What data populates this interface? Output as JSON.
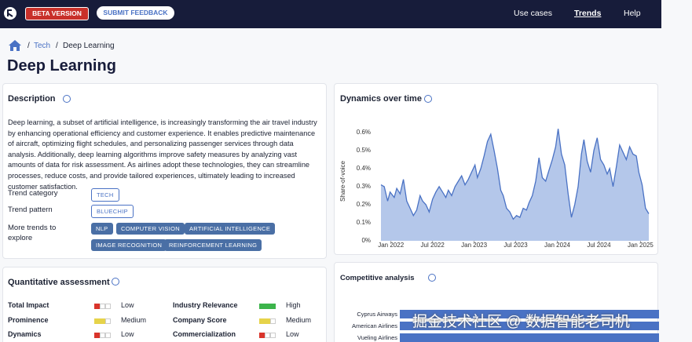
{
  "navbar": {
    "beta": "BETA VERSION",
    "feedback": "SUBMIT FEEDBACK",
    "links": [
      "Use cases",
      "Trends",
      "Help"
    ]
  },
  "breadcrumb": [
    "Tech",
    "Deep Learning"
  ],
  "title": "Deep Learning",
  "description": {
    "heading": "Description",
    "text": "Deep learning, a subset of artificial intelligence, is increasingly transforming the air travel industry by enhancing operational efficiency and customer experience. It enables predictive maintenance of aircraft, optimizing flight schedules, and personalizing passenger services through data analysis. Additionally, deep learning algorithms improve safety measures by analyzing vast amounts of data for risk assessment. As airlines adopt these technologies, they can streamline processes, reduce costs, and provide tailored experiences, ultimately leading to increased customer satisfaction.",
    "category_label": "Trend category",
    "category": "TECH",
    "pattern_label": "Trend pattern",
    "pattern": "BLUECHIP",
    "more_label": "More trends to explore",
    "more": [
      "NLP",
      "COMPUTER VISION",
      "ARTIFICIAL INTELLIGENCE",
      "IMAGE RECOGNITION",
      "REINFORCEMENT LEARNING"
    ]
  },
  "quantitative": {
    "heading": "Quantitative assessment",
    "rows": [
      {
        "label": "Total Impact",
        "rating": "Low",
        "filled": 1,
        "color": "#d9342b"
      },
      {
        "label": "Prominence",
        "rating": "Medium",
        "filled": 2,
        "color": "#e6d34a"
      },
      {
        "label": "Dynamics",
        "rating": "Low",
        "filled": 1,
        "color": "#d9342b"
      },
      {
        "label": "Industry Relevance",
        "rating": "High",
        "filled": 3,
        "color": "#3cb44b"
      },
      {
        "label": "Company Score",
        "rating": "Medium",
        "filled": 2,
        "color": "#e6d34a"
      },
      {
        "label": "Commercialization",
        "rating": "Low",
        "filled": 1,
        "color": "#d9342b"
      }
    ]
  },
  "chart_data": {
    "type": "area",
    "title": "Dynamics over time",
    "y_label": "Share-of-voice",
    "color": "#4a72c4",
    "fill": "#b4c7ea",
    "grid": false,
    "xlim": [
      2021.88,
      2025.1
    ],
    "ylim": [
      0,
      0.66
    ],
    "xticks": [
      {
        "value": 2022,
        "label": "Jan 2022"
      },
      {
        "value": 2022.5,
        "label": "Jul 2022"
      },
      {
        "value": 2023,
        "label": "Jan 2023"
      },
      {
        "value": 2023.5,
        "label": "Jul 2023"
      },
      {
        "value": 2024,
        "label": "Jan 2024"
      },
      {
        "value": 2024.5,
        "label": "Jul 2024"
      },
      {
        "value": 2025,
        "label": "Jan 2025"
      }
    ],
    "yticks": [
      {
        "value": 0,
        "label": "0%"
      },
      {
        "value": 0.1,
        "label": "0.1%"
      },
      {
        "value": 0.2,
        "label": "0.2%"
      },
      {
        "value": 0.3,
        "label": "0.3%"
      },
      {
        "value": 0.4,
        "label": "0.4%"
      },
      {
        "value": 0.5,
        "label": "0.5%"
      },
      {
        "value": 0.6,
        "label": "0.6%"
      }
    ],
    "x": [
      2021.88,
      2021.92,
      2021.96,
      2021.99,
      2022.04,
      2022.07,
      2022.11,
      2022.15,
      2022.19,
      2022.23,
      2022.27,
      2022.31,
      2022.35,
      2022.38,
      2022.42,
      2022.46,
      2022.5,
      2022.54,
      2022.58,
      2022.62,
      2022.66,
      2022.69,
      2022.73,
      2022.77,
      2022.81,
      2022.85,
      2022.89,
      2022.93,
      2022.97,
      2023.01,
      2023.04,
      2023.08,
      2023.12,
      2023.16,
      2023.2,
      2023.24,
      2023.28,
      2023.32,
      2023.35,
      2023.39,
      2023.43,
      2023.47,
      2023.51,
      2023.55,
      2023.59,
      2023.63,
      2023.66,
      2023.7,
      2023.74,
      2023.78,
      2023.82,
      2023.86,
      2023.9,
      2023.94,
      2023.98,
      2024.01,
      2024.05,
      2024.09,
      2024.13,
      2024.17,
      2024.21,
      2024.25,
      2024.29,
      2024.32,
      2024.36,
      2024.4,
      2024.44,
      2024.48,
      2024.52,
      2024.56,
      2024.6,
      2024.63,
      2024.67,
      2024.71,
      2024.75,
      2024.79,
      2024.83,
      2024.87,
      2024.91,
      2024.95,
      2024.98,
      2025.02,
      2025.06,
      2025.1
    ],
    "values": [
      0.31,
      0.3,
      0.22,
      0.27,
      0.24,
      0.29,
      0.26,
      0.34,
      0.22,
      0.18,
      0.14,
      0.17,
      0.25,
      0.22,
      0.2,
      0.16,
      0.23,
      0.27,
      0.3,
      0.27,
      0.24,
      0.28,
      0.25,
      0.3,
      0.33,
      0.36,
      0.31,
      0.34,
      0.38,
      0.42,
      0.35,
      0.4,
      0.47,
      0.55,
      0.59,
      0.5,
      0.4,
      0.28,
      0.25,
      0.18,
      0.16,
      0.12,
      0.14,
      0.13,
      0.18,
      0.17,
      0.21,
      0.25,
      0.33,
      0.46,
      0.35,
      0.33,
      0.39,
      0.45,
      0.52,
      0.62,
      0.48,
      0.42,
      0.26,
      0.13,
      0.2,
      0.3,
      0.48,
      0.56,
      0.44,
      0.38,
      0.5,
      0.57,
      0.45,
      0.42,
      0.37,
      0.4,
      0.3,
      0.41,
      0.53,
      0.49,
      0.45,
      0.52,
      0.48,
      0.47,
      0.38,
      0.31,
      0.18,
      0.15
    ]
  },
  "competitive": {
    "heading": "Competitive analysis",
    "categories": [
      "Cyprus Airways",
      "American Airlines",
      "Vueling Airlines"
    ]
  },
  "watermark": "掘金技术社区 @ 数据智能老司机"
}
